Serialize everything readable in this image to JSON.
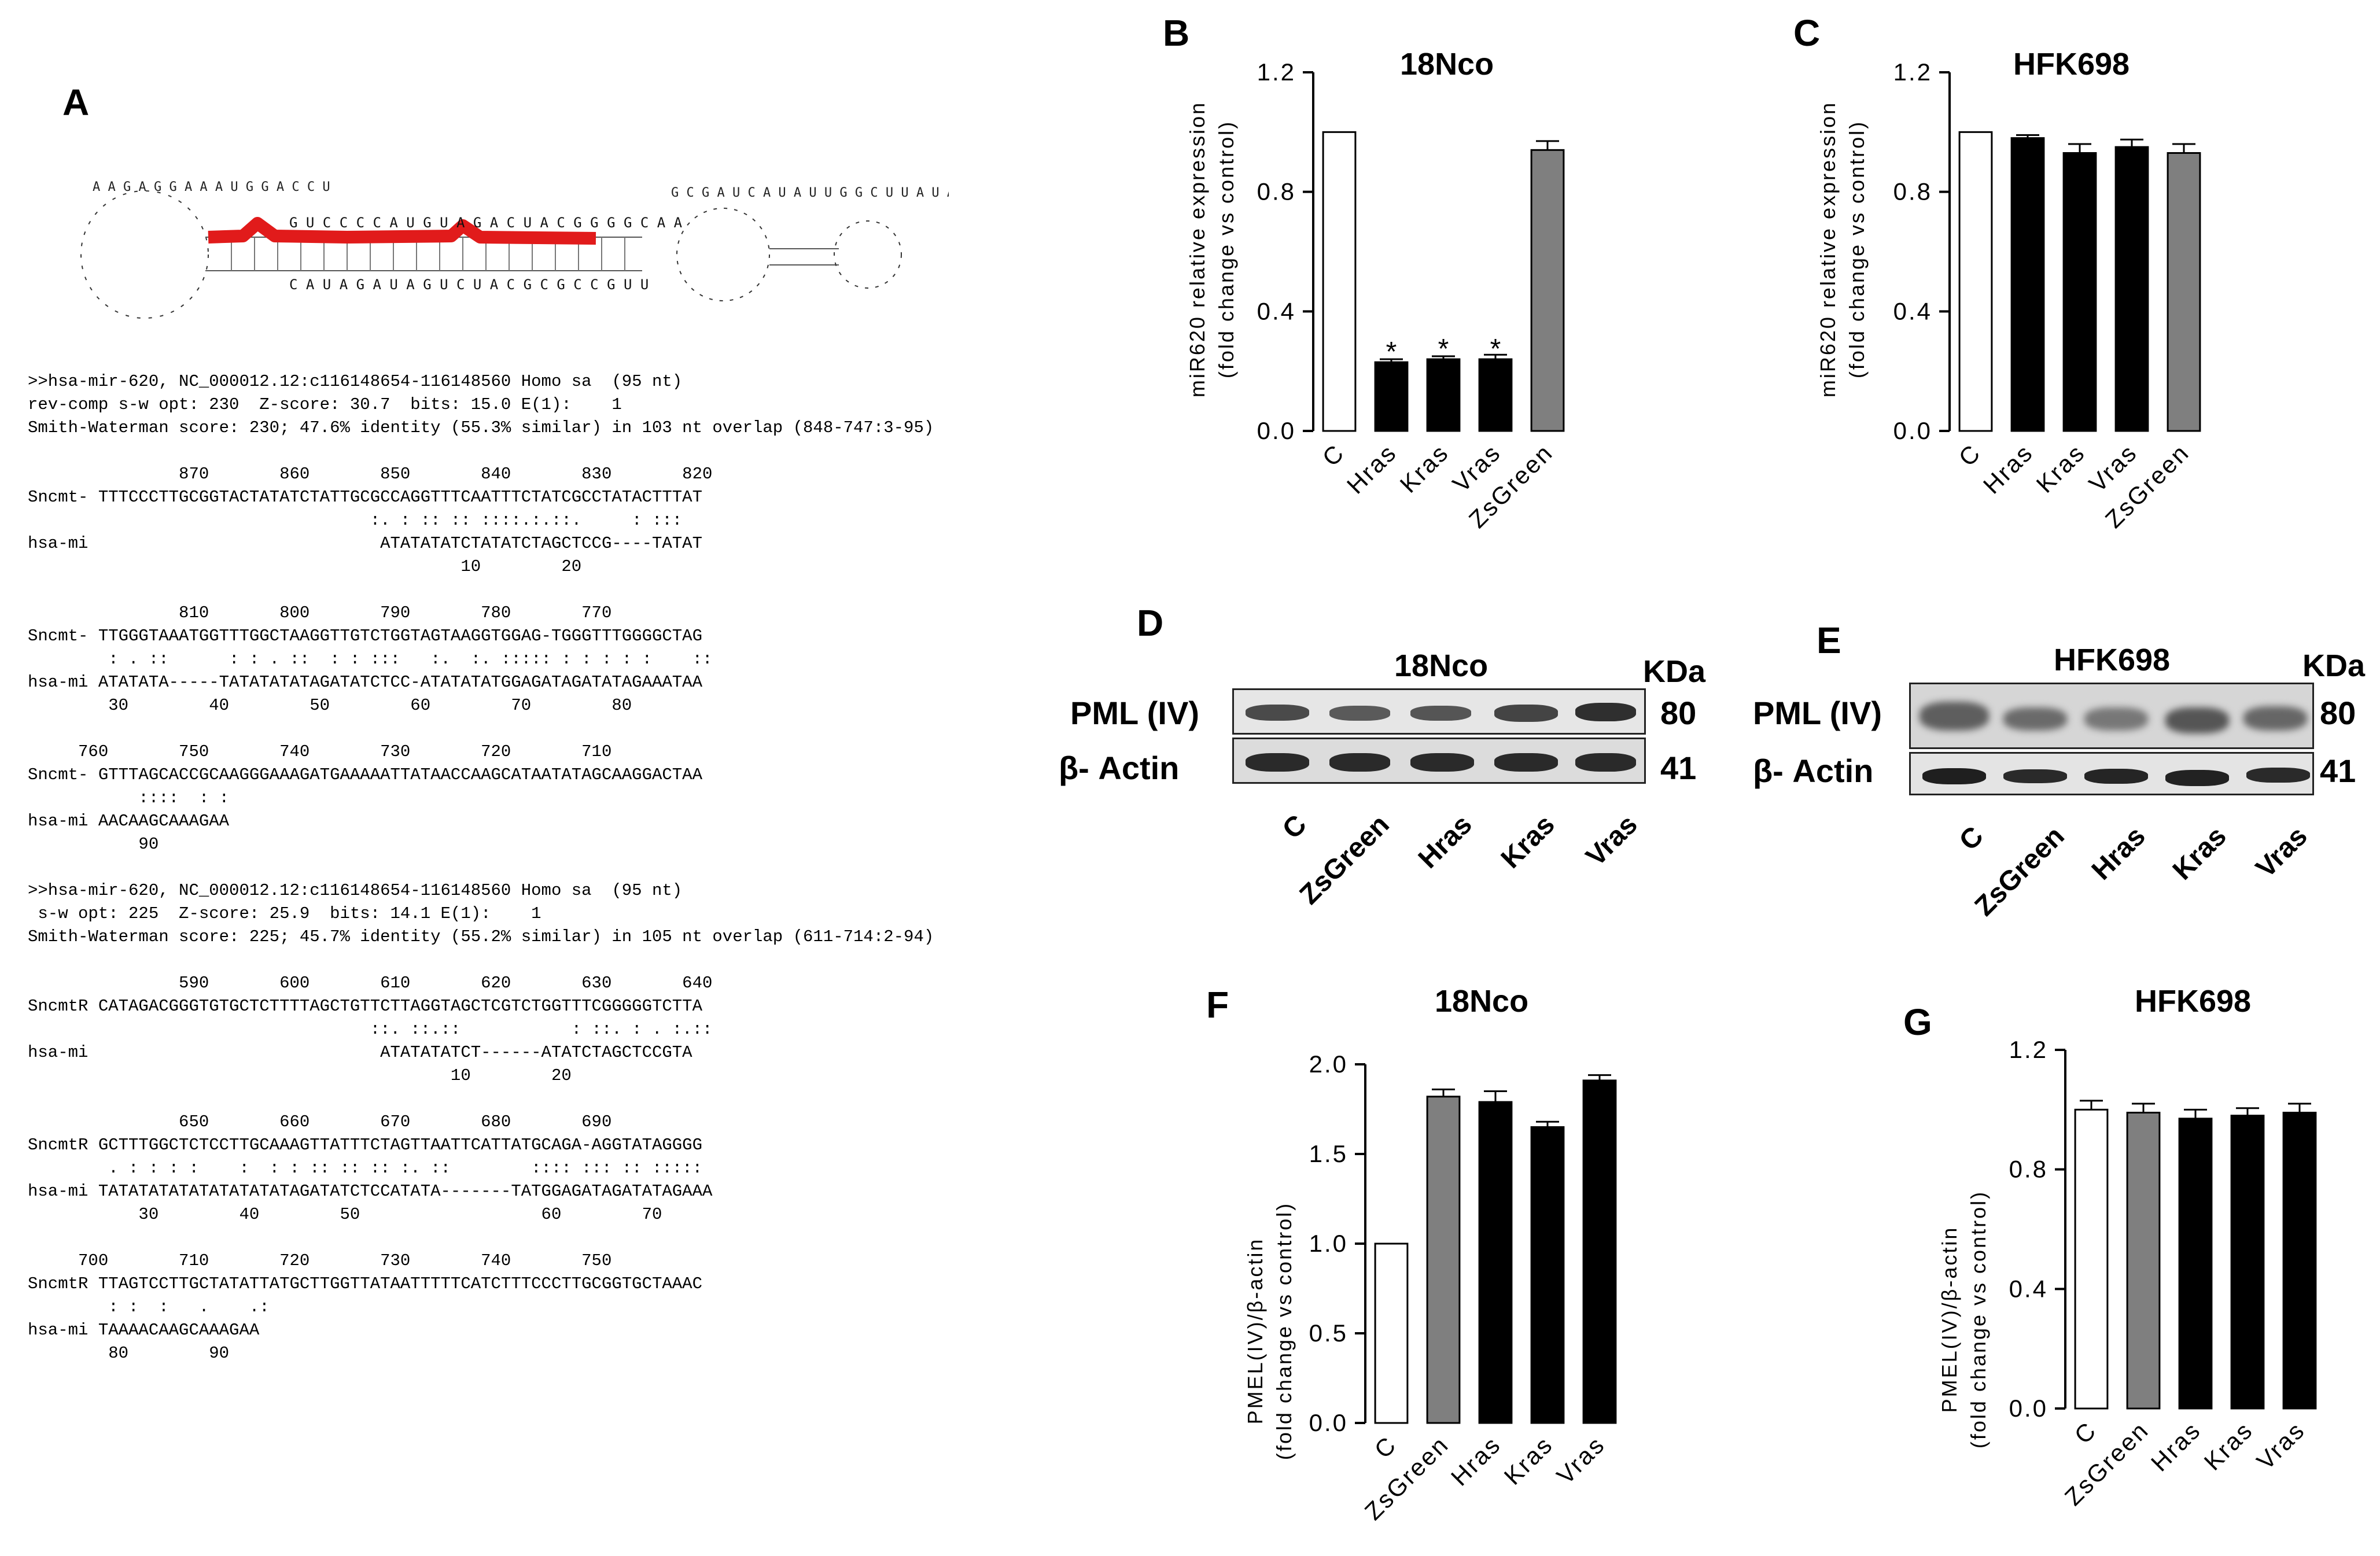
{
  "panels": {
    "A": "A",
    "B": "B",
    "C": "C",
    "D": "D",
    "E": "E",
    "F": "F",
    "G": "G"
  },
  "structure": {
    "left_loop": "A A G A G G A A A U G G A C C U",
    "stem_top": "G U C C C C A U G U A G A C U A C G G G G C A A",
    "stem_bottom": "C A U A G A U A G U C U A C G C G C C G U U",
    "right_loops": "G C G A U C A U A U U G G C U U A U A C G U C G A",
    "highlight_color": "#e11b1b"
  },
  "alignment": {
    "lines": [
      ">>hsa-mir-620, NC_000012.12:c116148654-116148560 Homo sa  (95 nt)",
      "rev-comp s-w opt: 230  Z-score: 30.7  bits: 15.0 E(1):    1",
      "Smith-Waterman score: 230; 47.6% identity (55.3% similar) in 103 nt overlap (848-747:3-95)",
      "",
      "               870       860       850       840       830       820",
      "Sncmt- TTTCCCTTGCGGTACTATATCTATTGCGCCAGGTTTCAATTTCTATCGCCTATACTTTAT",
      "                                  :. : :: :: ::::.:.::.     : :::",
      "hsa-mi                             ATATATATCTATATCTAGCTCCG----TATAT",
      "                                           10        20",
      "",
      "               810       800       790       780       770",
      "Sncmt- TTGGGTAAATGGTTTGGCTAAGGTTGTCTGGTAGTAAGGTGGAG-TGGGTTTGGGGCTAG",
      "        : . ::      : : . ::  : : :::   :.  :. ::::: : : : : :    ::",
      "hsa-mi ATATATA-----TATATATATAGATATCTCC-ATATATATGGAGATAGATATAGAAATAA",
      "        30        40        50        60        70        80",
      "",
      "     760       750       740       730       720       710",
      "Sncmt- GTTTAGCACCGCAAGGGAAAGATGAAAAATTATAACCAAGCATAATATAGCAAGGACTAA",
      "           ::::  : :",
      "hsa-mi AACAAGCAAAGAA",
      "           90",
      "",
      ">>hsa-mir-620, NC_000012.12:c116148654-116148560 Homo sa  (95 nt)",
      " s-w opt: 225  Z-score: 25.9  bits: 14.1 E(1):    1",
      "Smith-Waterman score: 225; 45.7% identity (55.2% similar) in 105 nt overlap (611-714:2-94)",
      "",
      "               590       600       610       620       630       640",
      "SncmtR CATAGACGGGTGTGCTCTTTTAGCTGTTCTTAGGTAGCTCGTCTGGTTTCGGGGGTCTTA",
      "                                  ::. ::.::           : ::. : . :.::",
      "hsa-mi                             ATATATATCT------ATATCTAGCTCCGTA",
      "                                          10        20",
      "",
      "               650       660       670       680       690",
      "SncmtR GCTTTGGCTCTCCTTGCAAAGTTATTTCTAGTTAATTCATTATGCAGA-AGGTATAGGGG",
      "        . : : : :    :  : : :: :: :: :. ::        :::: ::: :: :::::",
      "hsa-mi TATATATATATATATATATAGATATCTCCATATA-------TATGGAGATAGATATAGAAA",
      "           30        40        50                  60        70",
      "",
      "     700       710       720       730       740       750",
      "SncmtR TTAGTCCTTGCTATATTATGCTTGGTTATAATTTTTCATCTTTCCCTTGCGGTGCTAAAC",
      "        : :  :   .    .:",
      "hsa-mi TAAAACAAGCAAAGAA",
      "        80        90"
    ]
  },
  "charts": {
    "B": {
      "title": "18Nco",
      "ylabel_line1": "miR620 relative expression",
      "ylabel_line2": "(fold change vs control)"
    },
    "C": {
      "title": "HFK698",
      "ylabel_line1": "miR620 relative expression",
      "ylabel_line2": "(fold change vs control)"
    },
    "F": {
      "title": "18Nco",
      "ylabel_line1": "PMEL(IV)/β-actin",
      "ylabel_line2": "(fold change vs control)"
    },
    "G": {
      "title": "HFK698",
      "ylabel_line1": "PMEL(IV)/β-actin",
      "ylabel_line2": "(fold change vs control)"
    }
  },
  "chart_data": [
    {
      "panel": "B",
      "type": "bar",
      "title": "18Nco",
      "ylabel": "miR620 relative expression (fold change vs control)",
      "categories": [
        "C",
        "Hras",
        "Kras",
        "Vras",
        "ZsGreen"
      ],
      "values": [
        1.0,
        0.23,
        0.24,
        0.24,
        0.94
      ],
      "errors": [
        0,
        0.01,
        0.01,
        0.015,
        0.03
      ],
      "significance": [
        "",
        "*",
        "*",
        "*",
        ""
      ],
      "colors": [
        "#ffffff",
        "#000000",
        "#000000",
        "#000000",
        "#7f7f7f"
      ],
      "ylim": [
        0,
        1.2
      ],
      "yticks": [
        "0.0",
        "0.4",
        "0.8",
        "1.2"
      ]
    },
    {
      "panel": "C",
      "type": "bar",
      "title": "HFK698",
      "ylabel": "miR620 relative expression (fold change vs control)",
      "categories": [
        "C",
        "Hras",
        "Kras",
        "Vras",
        "ZsGreen"
      ],
      "values": [
        1.0,
        0.98,
        0.93,
        0.95,
        0.93
      ],
      "errors": [
        0,
        0.01,
        0.03,
        0.025,
        0.03
      ],
      "colors": [
        "#ffffff",
        "#000000",
        "#000000",
        "#000000",
        "#7f7f7f"
      ],
      "ylim": [
        0,
        1.2
      ],
      "yticks": [
        "0.0",
        "0.4",
        "0.8",
        "1.2"
      ]
    },
    {
      "panel": "F",
      "type": "bar",
      "title": "18Nco",
      "ylabel": "PMEL(IV)/β-actin (fold change vs control)",
      "categories": [
        "C",
        "ZsGreen",
        "Hras",
        "Kras",
        "Vras"
      ],
      "values": [
        1.0,
        1.82,
        1.79,
        1.65,
        1.91
      ],
      "errors": [
        0,
        0.04,
        0.06,
        0.03,
        0.03
      ],
      "colors": [
        "#ffffff",
        "#7f7f7f",
        "#000000",
        "#000000",
        "#000000"
      ],
      "ylim": [
        0,
        2.0
      ],
      "yticks": [
        "0.0",
        "0.5",
        "1.0",
        "1.5",
        "2.0"
      ]
    },
    {
      "panel": "G",
      "type": "bar",
      "title": "HFK698",
      "ylabel": "PMEL(IV)/β-actin (fold change vs control)",
      "categories": [
        "C",
        "ZsGreen",
        "Hras",
        "Kras",
        "Vras"
      ],
      "values": [
        1.0,
        0.99,
        0.97,
        0.98,
        0.99
      ],
      "errors": [
        0.03,
        0.03,
        0.03,
        0.025,
        0.03
      ],
      "colors": [
        "#ffffff",
        "#7f7f7f",
        "#000000",
        "#000000",
        "#000000"
      ],
      "ylim": [
        0,
        1.2
      ],
      "yticks": [
        "0.0",
        "0.4",
        "0.8",
        "1.2"
      ]
    }
  ],
  "blots": {
    "D": {
      "title": "18Nco",
      "unit": "KDa",
      "row1_label": "PML (IV)",
      "row1_kda": "80",
      "row2_label": "β- Actin",
      "row2_kda": "41",
      "lanes": [
        "C",
        "ZsGreen",
        "Hras",
        "Kras",
        "Vras"
      ]
    },
    "E": {
      "title": "HFK698",
      "unit": "KDa",
      "row1_label": "PML (IV)",
      "row1_kda": "80",
      "row2_label": "β- Actin",
      "row2_kda": "41",
      "lanes": [
        "C",
        "ZsGreen",
        "Hras",
        "Kras",
        "Vras"
      ]
    }
  }
}
